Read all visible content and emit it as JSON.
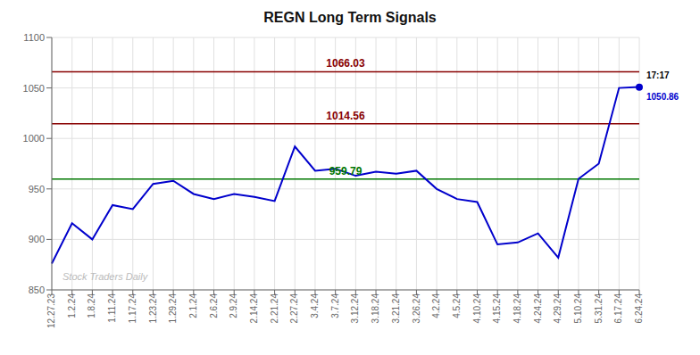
{
  "chart_data": {
    "type": "line",
    "title": "REGN Long Term Signals",
    "categories": [
      "12.27.23",
      "1.2.24",
      "1.8.24",
      "1.11.24",
      "1.17.24",
      "1.23.24",
      "1.29.24",
      "2.1.24",
      "2.6.24",
      "2.9.24",
      "2.14.24",
      "2.21.24",
      "2.27.24",
      "3.4.24",
      "3.7.24",
      "3.12.24",
      "3.18.24",
      "3.21.24",
      "3.26.24",
      "4.2.24",
      "4.5.24",
      "4.10.24",
      "4.15.24",
      "4.18.24",
      "4.24.24",
      "4.29.24",
      "5.10.24",
      "5.31.24",
      "6.17.24",
      "6.24.24"
    ],
    "values": [
      876,
      916,
      900,
      934,
      930,
      955,
      958,
      945,
      940,
      945,
      942,
      938,
      992,
      968,
      970,
      963,
      967,
      965,
      968,
      950,
      940,
      937,
      895,
      897,
      906,
      882,
      960,
      975,
      1050,
      1051
    ],
    "color": "#0000cc",
    "ylim": [
      850,
      1100
    ],
    "yticks": [
      850,
      900,
      950,
      1000,
      1050,
      1100
    ],
    "grid": true,
    "hlines": [
      {
        "value": 1066.03,
        "label": "1066.03",
        "color": "#880000"
      },
      {
        "value": 1014.56,
        "label": "1014.56",
        "color": "#880000"
      },
      {
        "value": 959.79,
        "label": "959.79",
        "color": "#007700"
      }
    ],
    "last_point": {
      "value": 1050.86,
      "label": "1050.86",
      "time": "17:17"
    },
    "watermark": "Stock Traders Daily"
  }
}
